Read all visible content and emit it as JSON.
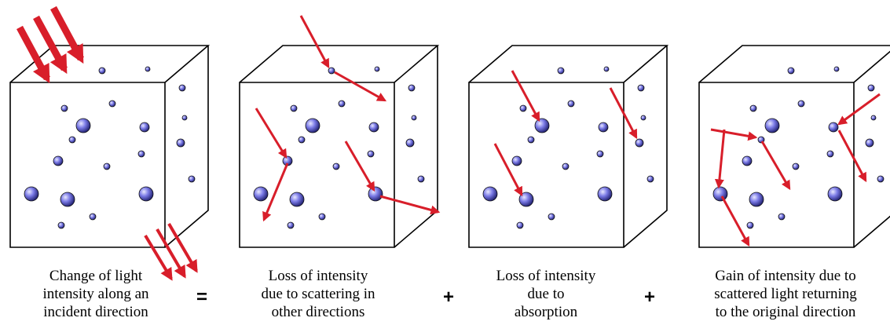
{
  "panels": [
    {
      "caption": [
        "Change of light",
        "intensity along an",
        "incident direction"
      ]
    },
    {
      "caption": [
        "Loss of intensity",
        "due to scattering in",
        "other directions"
      ]
    },
    {
      "caption": [
        "Loss of intensity",
        "due to",
        "absorption"
      ]
    },
    {
      "caption": [
        "Gain of intensity due to",
        "scattered light returning",
        "to the original direction"
      ]
    }
  ],
  "operators": [
    "=",
    "+",
    "+"
  ]
}
